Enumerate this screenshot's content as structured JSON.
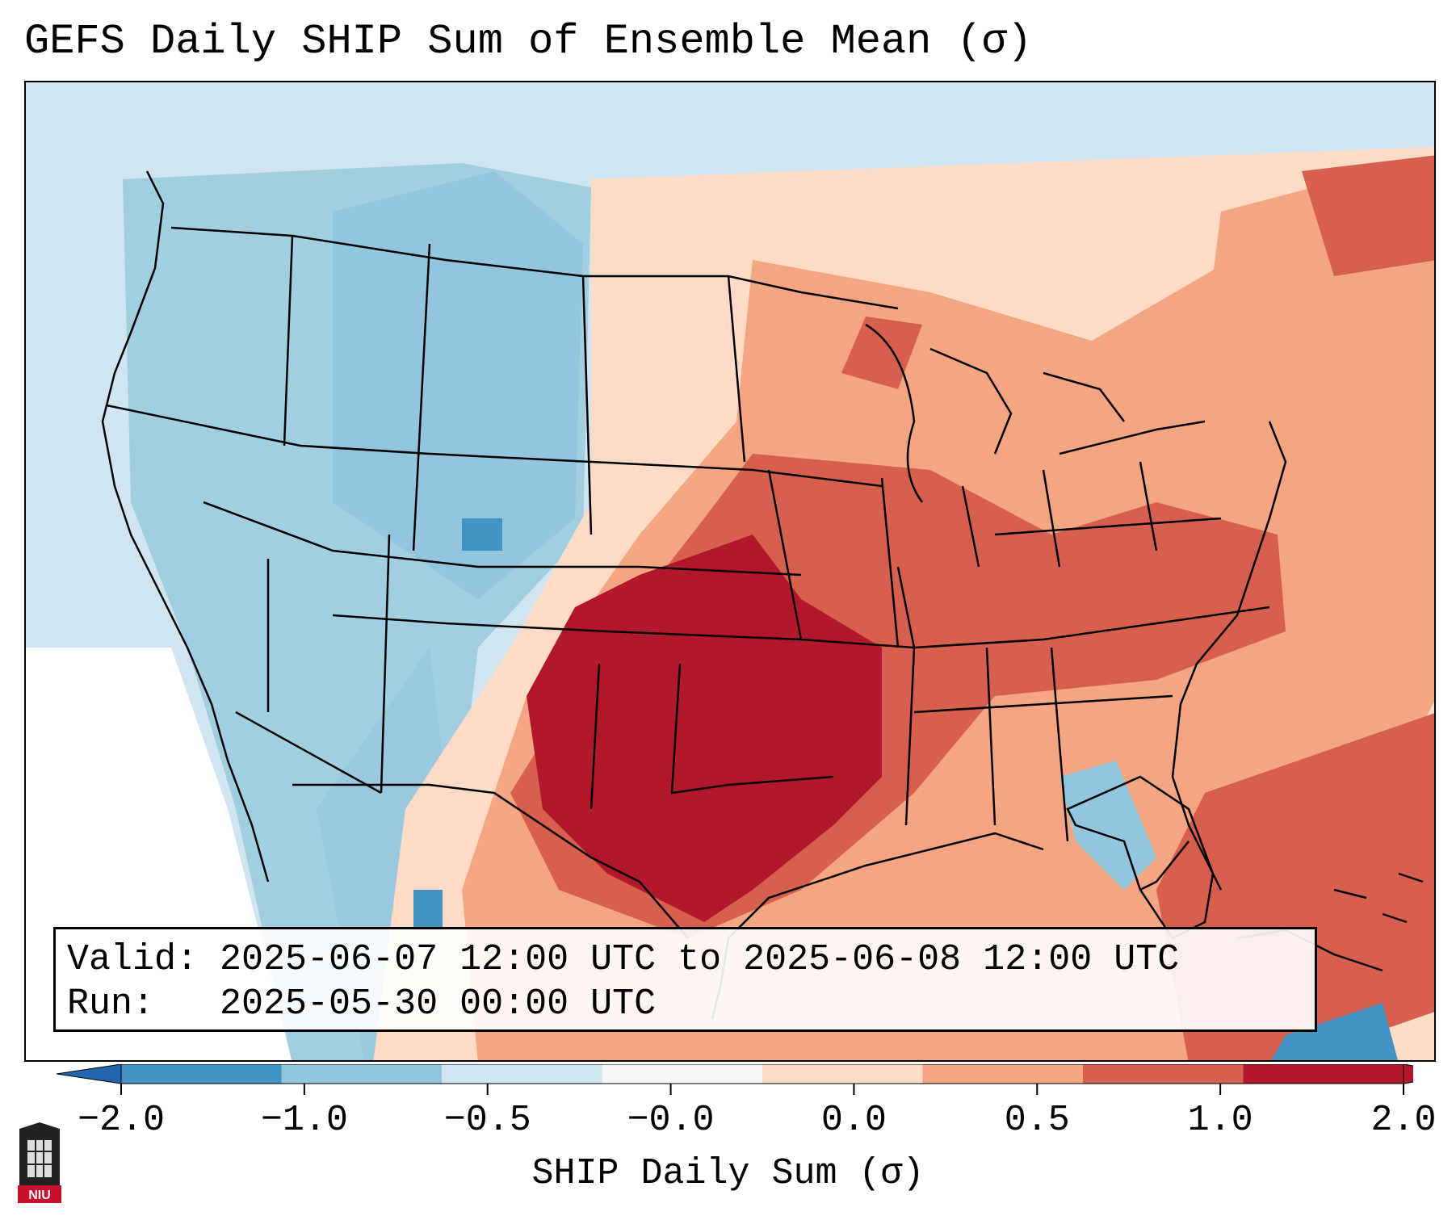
{
  "title": "GEFS Daily SHIP Sum of Ensemble Mean (σ)",
  "info": {
    "valid_line": "Valid: 2025-06-07 12:00 UTC to 2025-06-08 12:00 UTC",
    "run_line": "Run:   2025-05-30 00:00 UTC"
  },
  "colorbar": {
    "label": "SHIP Daily Sum (σ)",
    "ticks": [
      "−2.0",
      "−1.0",
      "−0.5",
      "−0.0",
      "0.0",
      "0.5",
      "1.0",
      "2.0"
    ],
    "colors": [
      "#4393c3",
      "#92c5de",
      "#d1e5f0",
      "#f7f7f7",
      "#fddbc7",
      "#f4a582",
      "#d6604d",
      "#b2182b"
    ],
    "extend_low_color": "#2166ac",
    "extend_high_color": "#b2182b"
  },
  "logo": {
    "text": "NIU",
    "color": "#c8102e"
  }
}
